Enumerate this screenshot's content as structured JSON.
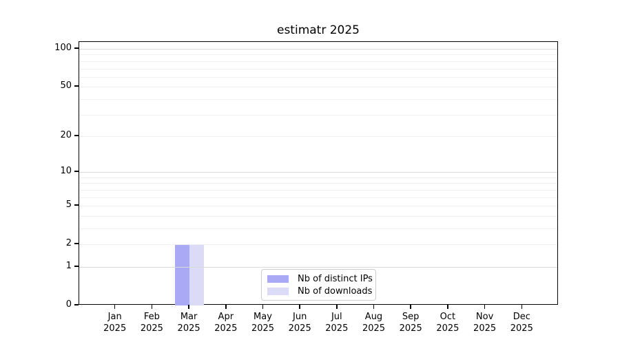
{
  "figure": {
    "background": "#ffffff",
    "axis_color": "#000000"
  },
  "chart_data": {
    "type": "bar",
    "title": "estimatr 2025",
    "categories": [
      "Jan",
      "Feb",
      "Mar",
      "Apr",
      "May",
      "Jun",
      "Jul",
      "Aug",
      "Sep",
      "Oct",
      "Nov",
      "Dec"
    ],
    "x_year": "2025",
    "series": [
      {
        "name": "Nb of distinct IPs",
        "color": "#a9a9f5",
        "values": [
          0,
          0,
          2,
          0,
          0,
          0,
          0,
          0,
          0,
          0,
          0,
          0
        ]
      },
      {
        "name": "Nb of downloads",
        "color": "#dbdbf7",
        "values": [
          0,
          0,
          2,
          0,
          0,
          0,
          0,
          0,
          0,
          0,
          0,
          0
        ]
      }
    ],
    "y_ticks": [
      0,
      1,
      2,
      5,
      10,
      20,
      50,
      100
    ],
    "y_scale": "log1p",
    "ylim": [
      0,
      100
    ],
    "xlabel": "",
    "ylabel": "",
    "grid": {
      "orientation": "horizontal",
      "minor": [
        2,
        3,
        4,
        5,
        6,
        7,
        8,
        9,
        20,
        30,
        40,
        50,
        60,
        70,
        80,
        90
      ],
      "major": [
        1,
        10,
        100
      ],
      "minor_color": "#efefef",
      "major_color": "#d9d9d9"
    },
    "legend": {
      "position": "lower-center-inside",
      "border_color": "#cccccc",
      "background": "#ffffff",
      "entries": [
        "Nb of distinct IPs",
        "Nb of downloads"
      ]
    }
  }
}
